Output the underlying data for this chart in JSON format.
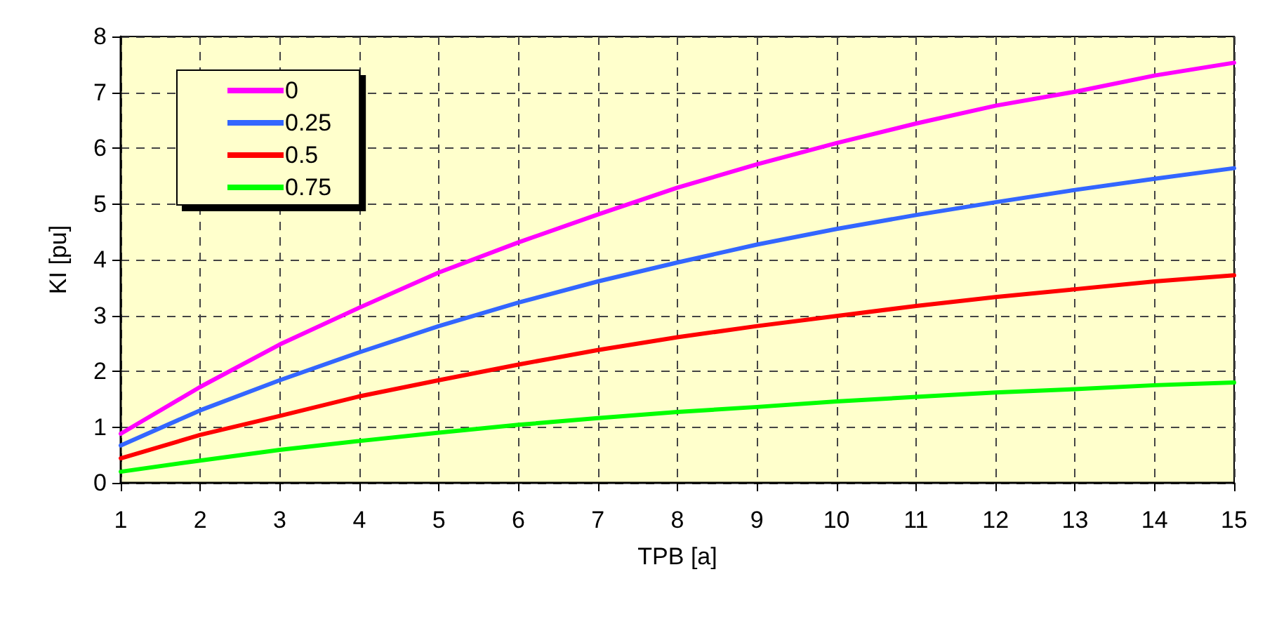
{
  "chart_data": {
    "type": "line",
    "xlabel": "TPB [a]",
    "ylabel": "KI [pu]",
    "x": [
      1,
      2,
      3,
      4,
      5,
      6,
      7,
      8,
      9,
      10,
      11,
      12,
      13,
      14,
      15
    ],
    "xlim": [
      1,
      15
    ],
    "xticks": [
      1,
      2,
      3,
      4,
      5,
      6,
      7,
      8,
      9,
      10,
      11,
      12,
      13,
      14,
      15
    ],
    "ylim": [
      0,
      8
    ],
    "yticks": [
      0,
      1,
      2,
      3,
      4,
      5,
      6,
      7,
      8
    ],
    "grid": true,
    "legend": "top left",
    "marker": "none",
    "line_style": "solid",
    "series": [
      {
        "name": "0",
        "color": "#ff00ff",
        "values": [
          0.88,
          1.72,
          2.48,
          3.14,
          3.77,
          4.31,
          4.81,
          5.29,
          5.71,
          6.09,
          6.44,
          6.76,
          7.01,
          7.3,
          7.53
        ]
      },
      {
        "name": "0.25",
        "color": "#3366ff",
        "values": [
          0.67,
          1.3,
          1.84,
          2.34,
          2.81,
          3.23,
          3.61,
          3.95,
          4.27,
          4.55,
          4.8,
          5.03,
          5.25,
          5.45,
          5.64
        ]
      },
      {
        "name": "0.5",
        "color": "#ff0000",
        "values": [
          0.44,
          0.86,
          1.2,
          1.55,
          1.84,
          2.12,
          2.38,
          2.61,
          2.81,
          2.99,
          3.17,
          3.33,
          3.47,
          3.61,
          3.72
        ]
      },
      {
        "name": "0.75",
        "color": "#00ff00",
        "values": [
          0.2,
          0.4,
          0.59,
          0.75,
          0.9,
          1.04,
          1.16,
          1.27,
          1.36,
          1.46,
          1.54,
          1.62,
          1.68,
          1.75,
          1.8
        ]
      }
    ]
  }
}
